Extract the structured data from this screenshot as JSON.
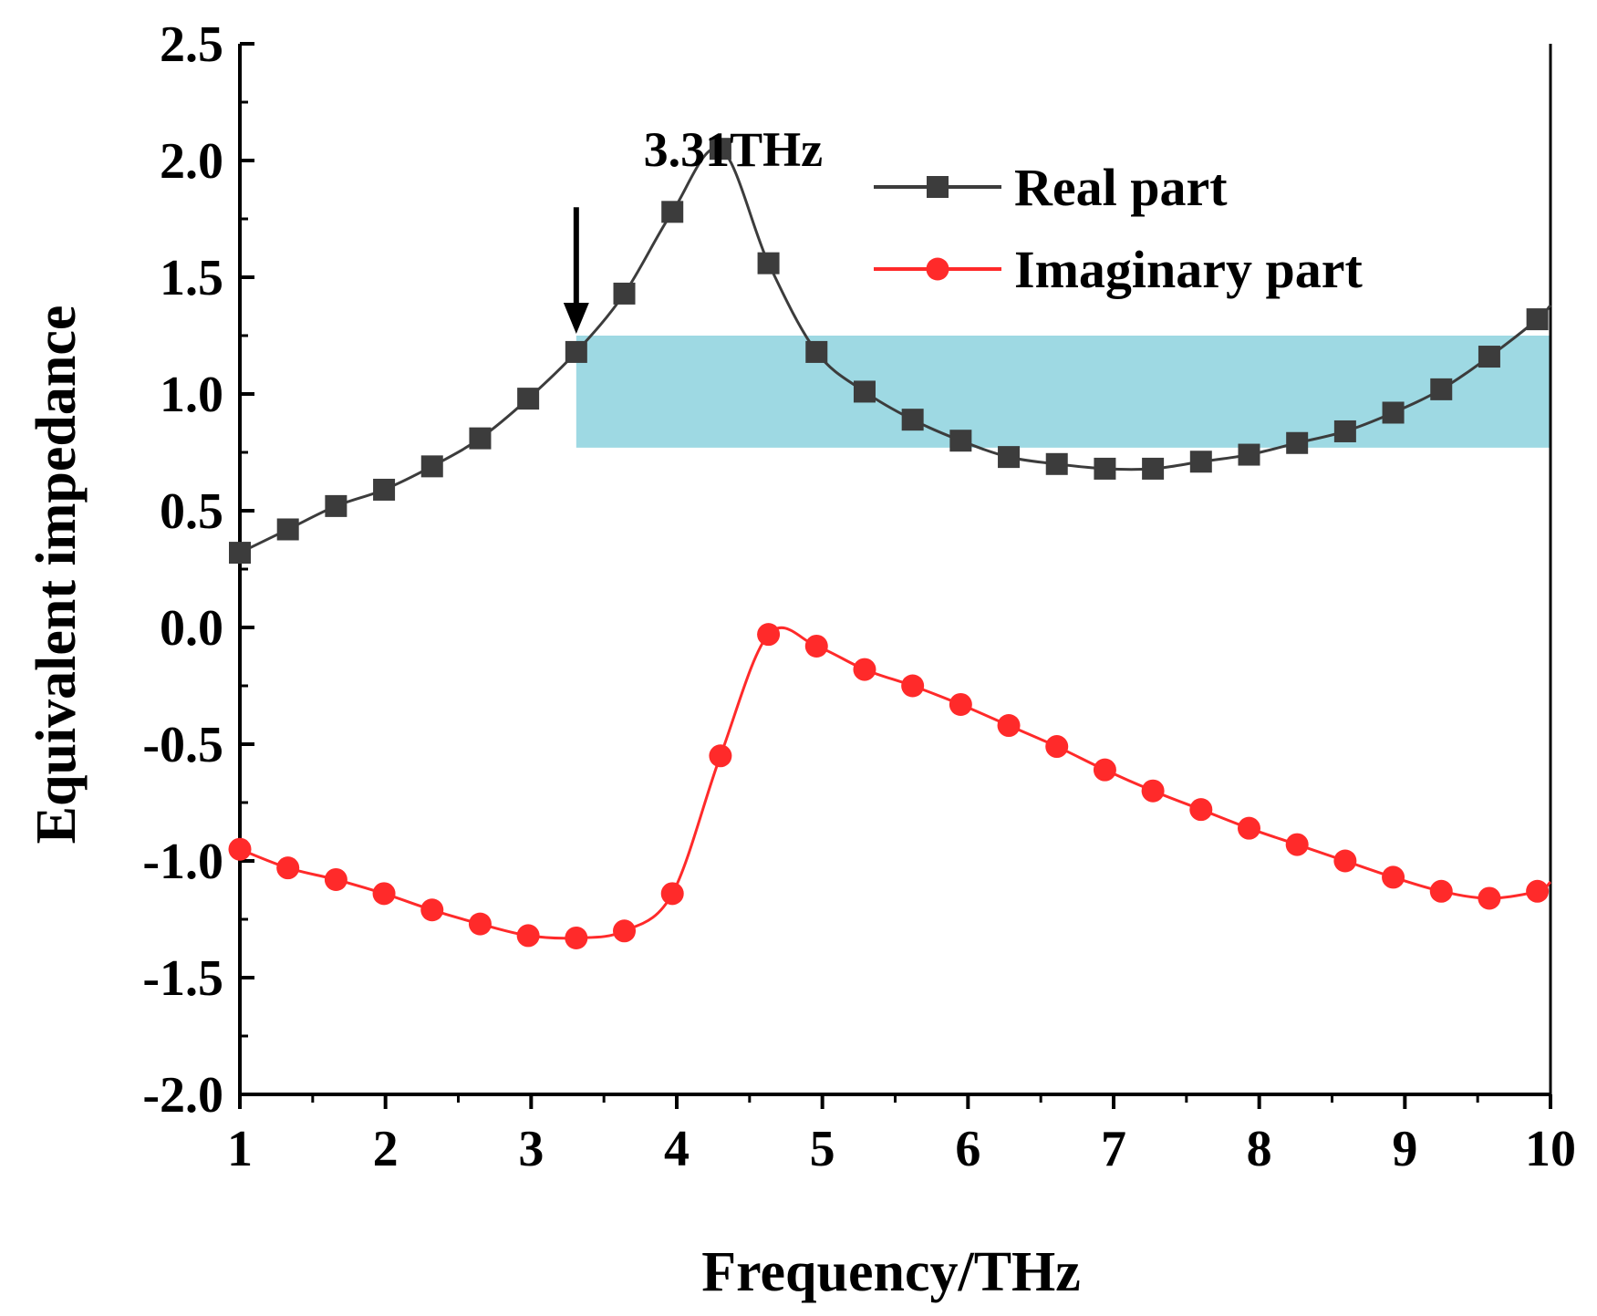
{
  "chart_data": {
    "type": "line",
    "xlabel": "Frequency/THz",
    "ylabel": "Equivalent impedance",
    "xlim": [
      1,
      10
    ],
    "ylim": [
      -2.0,
      2.5
    ],
    "xticks": [
      1,
      2,
      3,
      4,
      5,
      6,
      7,
      8,
      9,
      10
    ],
    "xtick_labels": [
      "1",
      "2",
      "3",
      "4",
      "5",
      "6",
      "7",
      "8",
      "9",
      "10"
    ],
    "yticks": [
      2.5,
      2.0,
      1.5,
      1.0,
      0.5,
      0.0,
      -0.5,
      -1.0,
      -1.5,
      -2.0
    ],
    "ytick_labels": [
      "2.5",
      "2.0",
      "1.5",
      "1.0",
      "0.5",
      "0.0",
      "-0.5",
      "-1.0",
      "-1.5",
      "-2.0"
    ],
    "legend_position": "top-right",
    "series": [
      {
        "name": "Real part",
        "color": "#3c3c3c",
        "marker": "square",
        "x": [
          1.0,
          1.33,
          1.66,
          1.99,
          2.32,
          2.65,
          2.98,
          3.31,
          3.64,
          3.97,
          4.3,
          4.63,
          4.96,
          5.29,
          5.62,
          5.95,
          6.28,
          6.61,
          6.94,
          7.27,
          7.6,
          7.93,
          8.26,
          8.59,
          8.92,
          9.25,
          9.58,
          9.91
        ],
        "values": [
          0.32,
          0.42,
          0.52,
          0.59,
          0.69,
          0.81,
          0.98,
          1.18,
          1.43,
          1.78,
          2.05,
          1.56,
          1.18,
          1.01,
          0.89,
          0.8,
          0.73,
          0.7,
          0.68,
          0.68,
          0.71,
          0.74,
          0.79,
          0.84,
          0.92,
          1.02,
          1.16,
          1.32
        ],
        "curve_end": [
          10.0,
          1.38
        ]
      },
      {
        "name": "Imaginary part",
        "color": "#ff2a2a",
        "marker": "circle",
        "x": [
          1.0,
          1.33,
          1.66,
          1.99,
          2.32,
          2.65,
          2.98,
          3.31,
          3.64,
          3.97,
          4.3,
          4.63,
          4.96,
          5.29,
          5.62,
          5.95,
          6.28,
          6.61,
          6.94,
          7.27,
          7.6,
          7.93,
          8.26,
          8.59,
          8.92,
          9.25,
          9.58,
          9.91
        ],
        "values": [
          -0.95,
          -1.03,
          -1.08,
          -1.14,
          -1.21,
          -1.27,
          -1.32,
          -1.33,
          -1.3,
          -1.14,
          -0.55,
          -0.03,
          -0.08,
          -0.18,
          -0.25,
          -0.33,
          -0.42,
          -0.51,
          -0.61,
          -0.7,
          -0.78,
          -0.86,
          -0.93,
          -1.0,
          -1.07,
          -1.13,
          -1.16,
          -1.13
        ],
        "curve_end": [
          10.0,
          -1.09
        ]
      }
    ],
    "highlight_band": {
      "x_range": [
        3.31,
        10.0
      ],
      "y_range": [
        0.77,
        1.25
      ],
      "color": "#9ed9e3"
    },
    "annotation": {
      "text": "3.31THz",
      "arrow_x": 3.31,
      "arrow_from_y": 1.8,
      "arrow_to_y": 1.25
    }
  }
}
